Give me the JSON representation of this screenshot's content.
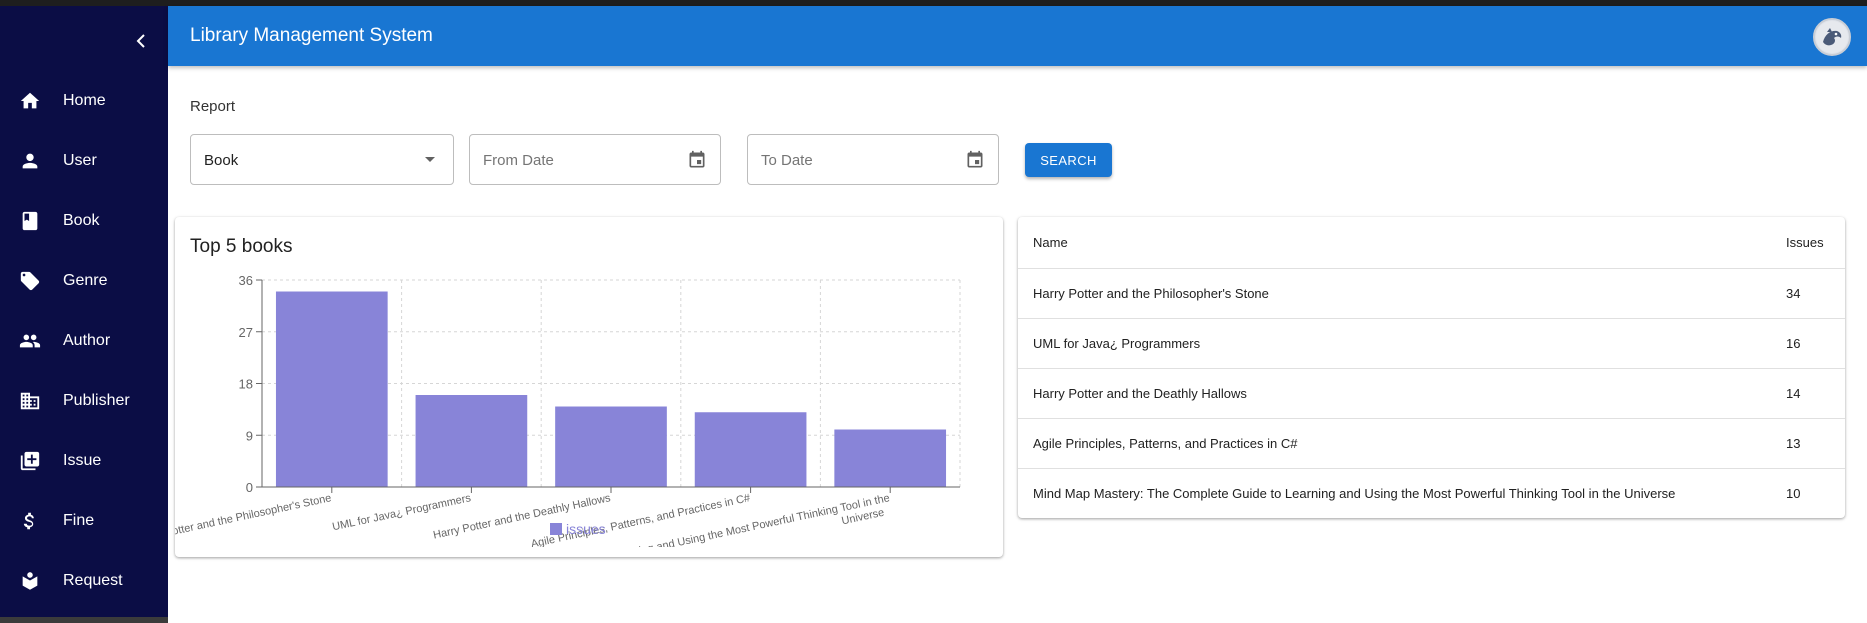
{
  "app": {
    "title": "Library Management System"
  },
  "sidebar": {
    "items": [
      {
        "label": "Home",
        "icon": "home-icon"
      },
      {
        "label": "User",
        "icon": "person-icon"
      },
      {
        "label": "Book",
        "icon": "book-icon"
      },
      {
        "label": "Genre",
        "icon": "tag-icon"
      },
      {
        "label": "Author",
        "icon": "people-icon"
      },
      {
        "label": "Publisher",
        "icon": "building-icon"
      },
      {
        "label": "Issue",
        "icon": "library-add-icon"
      },
      {
        "label": "Fine",
        "icon": "dollar-icon"
      },
      {
        "label": "Request",
        "icon": "book-open-icon"
      }
    ]
  },
  "report": {
    "label": "Report",
    "type_value": "Book",
    "from_placeholder": "From Date",
    "to_placeholder": "To Date",
    "search_label": "SEARCH"
  },
  "chart": {
    "title": "Top 5 books",
    "legend": "issues"
  },
  "chart_data": {
    "type": "bar",
    "categories": [
      "Harry Potter and the Philosopher's Stone",
      "UML for Java¿ Programmers",
      "Harry Potter and the Deathly Hallows",
      "Agile Principles, Patterns, and Practices in C#",
      "Mind Map Mastery: The Complete Guide to Learning and Using the Most Powerful Thinking Tool in the Universe"
    ],
    "series": [
      {
        "name": "issues",
        "values": [
          34,
          16,
          14,
          13,
          10
        ]
      }
    ],
    "yticks": [
      "0",
      "9",
      "18",
      "27",
      "36"
    ],
    "ylim": [
      0,
      36
    ],
    "grid": true,
    "legend_position": "bottom",
    "bar_color": "#8884d8"
  },
  "table": {
    "headers": {
      "name": "Name",
      "issues": "Issues"
    },
    "rows": [
      {
        "name": "Harry Potter and the Philosopher's Stone",
        "issues": "34"
      },
      {
        "name": "UML for Java¿ Programmers",
        "issues": "16"
      },
      {
        "name": "Harry Potter and the Deathly Hallows",
        "issues": "14"
      },
      {
        "name": "Agile Principles, Patterns, and Practices in C#",
        "issues": "13"
      },
      {
        "name": "Mind Map Mastery: The Complete Guide to Learning and Using the Most Powerful Thinking Tool in the Universe",
        "issues": "10"
      }
    ]
  },
  "colors": {
    "sidebar": "#0b0d45",
    "appbar": "#1976d2",
    "accent": "#1976d2",
    "bar": "#8884d8"
  }
}
